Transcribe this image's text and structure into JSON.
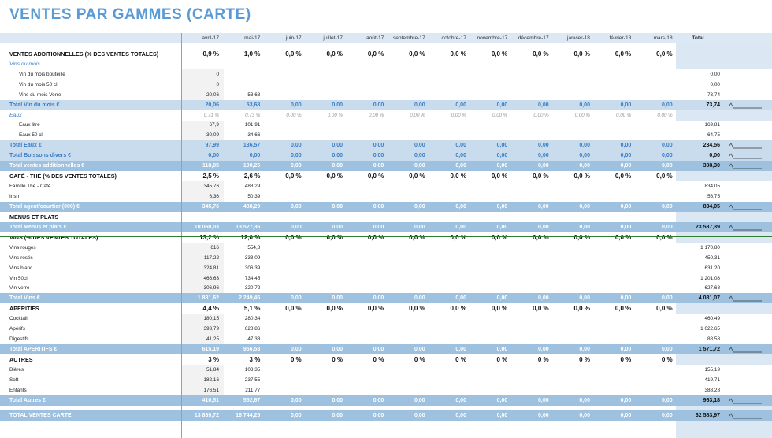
{
  "title": "VENTES PAR GAMMES (CARTE)",
  "columns": [
    "avril-17",
    "mai-17",
    "juin-17",
    "juillet-17",
    "août-17",
    "septembre-17",
    "octobre-17",
    "novembre-17",
    "décembre-17",
    "janvier-18",
    "février-18",
    "mars-18"
  ],
  "total_label": "Total",
  "rows": [
    {
      "type": "sec",
      "label": "VENTES ADDITIONNELLES (% DES VENTES TOTALES)",
      "values": [
        "0,9 %",
        "1,0 %",
        "0,0 %",
        "0,0 %",
        "0,0 %",
        "0,0 %",
        "0,0 %",
        "0,0 %",
        "0,0 %",
        "0,0 %",
        "0,0 %",
        "0,0 %"
      ],
      "total": ""
    },
    {
      "type": "sub",
      "label": "Vins du mois",
      "values": [
        "",
        "",
        "",
        "",
        "",
        "",
        "",
        "",
        "",
        "",
        "",
        ""
      ],
      "total": ""
    },
    {
      "type": "item",
      "label": "Vin du mois bouteille",
      "values": [
        "0",
        "",
        "",
        "",
        "",
        "",
        "",
        "",
        "",
        "",
        "",
        ""
      ],
      "total": "0,00"
    },
    {
      "type": "item",
      "label": "Vin du mois 50 cl",
      "values": [
        "0",
        "",
        "",
        "",
        "",
        "",
        "",
        "",
        "",
        "",
        "",
        ""
      ],
      "total": "0,00"
    },
    {
      "type": "item",
      "label": "Vins du mois Verre",
      "values": [
        "20,06",
        "53,68",
        "",
        "",
        "",
        "",
        "",
        "",
        "",
        "",
        "",
        ""
      ],
      "total": "73,74"
    },
    {
      "type": "t-light",
      "label": "Total Vin du mois €",
      "values": [
        "20,06",
        "53,68",
        "0,00",
        "0,00",
        "0,00",
        "0,00",
        "0,00",
        "0,00",
        "0,00",
        "0,00",
        "0,00",
        "0,00"
      ],
      "total": "73,74",
      "spark": true
    },
    {
      "type": "sub",
      "label": "Eaux",
      "values": [
        "0,71 %",
        "0,73 %",
        "0,00 %",
        "0,00 %",
        "0,00 %",
        "0,00 %",
        "0,00 %",
        "0,00 %",
        "0,00 %",
        "0,00 %",
        "0,00 %",
        "0,00 %"
      ],
      "total": ""
    },
    {
      "type": "item",
      "label": "Eaux litre",
      "values": [
        "67,9",
        "101,91",
        "",
        "",
        "",
        "",
        "",
        "",
        "",
        "",
        "",
        ""
      ],
      "total": "169,81"
    },
    {
      "type": "item",
      "label": "Eaux 50 cl",
      "values": [
        "30,09",
        "34,66",
        "",
        "",
        "",
        "",
        "",
        "",
        "",
        "",
        "",
        ""
      ],
      "total": "64,75"
    },
    {
      "type": "t-light",
      "label": "Total Eaux €",
      "values": [
        "97,99",
        "136,57",
        "0,00",
        "0,00",
        "0,00",
        "0,00",
        "0,00",
        "0,00",
        "0,00",
        "0,00",
        "0,00",
        "0,00"
      ],
      "total": "234,56",
      "spark": true
    },
    {
      "type": "t-light",
      "label": "Total Boissons divers €",
      "values": [
        "0,00",
        "0,00",
        "0,00",
        "0,00",
        "0,00",
        "0,00",
        "0,00",
        "0,00",
        "0,00",
        "0,00",
        "0,00",
        "0,00"
      ],
      "total": "0,00",
      "spark": true
    },
    {
      "type": "t-dark",
      "label": "Total ventes additionnelles €",
      "values": [
        "118,05",
        "190,25",
        "0,00",
        "0,00",
        "0,00",
        "0,00",
        "0,00",
        "0,00",
        "0,00",
        "0,00",
        "0,00",
        "0,00"
      ],
      "total": "308,30",
      "spark": true
    },
    {
      "type": "sec",
      "label": "CAFÉ - THÉ  (% DES VENTES TOTALES)",
      "values": [
        "2,5 %",
        "2,6 %",
        "0,0 %",
        "0,0 %",
        "0,0 %",
        "0,0 %",
        "0,0 %",
        "0,0 %",
        "0,0 %",
        "0,0 %",
        "0,0 %",
        "0,0 %"
      ],
      "total": ""
    },
    {
      "type": "item flat",
      "label": "Famille Thé - Café",
      "values": [
        "345,76",
        "488,29",
        "",
        "",
        "",
        "",
        "",
        "",
        "",
        "",
        "",
        ""
      ],
      "total": "834,05"
    },
    {
      "type": "item flat",
      "label": "Irish",
      "values": [
        "6,36",
        "50,39",
        "",
        "",
        "",
        "",
        "",
        "",
        "",
        "",
        "",
        ""
      ],
      "total": "56,75"
    },
    {
      "type": "t-dark",
      "label": "Total agent/courtier (000) €",
      "values": [
        "345,76",
        "488,29",
        "0,00",
        "0,00",
        "0,00",
        "0,00",
        "0,00",
        "0,00",
        "0,00",
        "0,00",
        "0,00",
        "0,00"
      ],
      "total": "834,05",
      "spark": true
    },
    {
      "type": "sec",
      "label": "MENUS ET PLATS",
      "values": [
        "",
        "",
        "",
        "",
        "",
        "",
        "",
        "",
        "",
        "",
        "",
        ""
      ],
      "total": ""
    },
    {
      "type": "t-dark",
      "label": "Total Menus et plats €",
      "values": [
        "10 060,03",
        "13 527,36",
        "0,00",
        "0,00",
        "0,00",
        "0,00",
        "0,00",
        "0,00",
        "0,00",
        "0,00",
        "0,00",
        "0,00"
      ],
      "total": "23 587,39",
      "spark": true
    },
    {
      "type": "sec",
      "label": "VINS   (% DES VENTES TOTALES)",
      "values": [
        "13,2 %",
        "12,0 %",
        "0,0 %",
        "0,0 %",
        "0,0 %",
        "0,0 %",
        "0,0 %",
        "0,0 %",
        "0,0 %",
        "0,0 %",
        "0,0 %",
        "0,0 %"
      ],
      "total": ""
    },
    {
      "type": "item flat",
      "label": "Vins rouges",
      "values": [
        "616",
        "554,8",
        "",
        "",
        "",
        "",
        "",
        "",
        "",
        "",
        "",
        ""
      ],
      "total": "1 170,80"
    },
    {
      "type": "item flat",
      "label": "Vins rosés",
      "values": [
        "117,22",
        "333,09",
        "",
        "",
        "",
        "",
        "",
        "",
        "",
        "",
        "",
        ""
      ],
      "total": "450,31"
    },
    {
      "type": "item flat",
      "label": "Vins blanc",
      "values": [
        "324,81",
        "306,39",
        "",
        "",
        "",
        "",
        "",
        "",
        "",
        "",
        "",
        ""
      ],
      "total": "631,20"
    },
    {
      "type": "item flat",
      "label": "Vin 50cl",
      "values": [
        "466,63",
        "734,45",
        "",
        "",
        "",
        "",
        "",
        "",
        "",
        "",
        "",
        ""
      ],
      "total": "1 201,08"
    },
    {
      "type": "item flat",
      "label": "Vin verre",
      "values": [
        "306,96",
        "320,72",
        "",
        "",
        "",
        "",
        "",
        "",
        "",
        "",
        "",
        ""
      ],
      "total": "627,68"
    },
    {
      "type": "t-dark",
      "label": "Total Vins €",
      "values": [
        "1 831,62",
        "2 249,45",
        "0,00",
        "0,00",
        "0,00",
        "0,00",
        "0,00",
        "0,00",
        "0,00",
        "0,00",
        "0,00",
        "0,00"
      ],
      "total": "4 081,07",
      "spark": true
    },
    {
      "type": "sec",
      "label": "APERITIFS",
      "values": [
        "4,4 %",
        "5,1 %",
        "0,0 %",
        "0,0 %",
        "0,0 %",
        "0,0 %",
        "0,0 %",
        "0,0 %",
        "0,0 %",
        "0,0 %",
        "0,0 %",
        "0,0 %"
      ],
      "total": ""
    },
    {
      "type": "item flat",
      "label": "Cocktail",
      "values": [
        "180,15",
        "280,34",
        "",
        "",
        "",
        "",
        "",
        "",
        "",
        "",
        "",
        ""
      ],
      "total": "460,49"
    },
    {
      "type": "item flat",
      "label": "Apérifs",
      "values": [
        "393,79",
        "628,86",
        "",
        "",
        "",
        "",
        "",
        "",
        "",
        "",
        "",
        ""
      ],
      "total": "1 022,65"
    },
    {
      "type": "item flat",
      "label": "Digestifs",
      "values": [
        "41,25",
        "47,33",
        "",
        "",
        "",
        "",
        "",
        "",
        "",
        "",
        "",
        ""
      ],
      "total": "88,58"
    },
    {
      "type": "t-dark",
      "label": "Total APERITIFS €",
      "values": [
        "615,19",
        "956,53",
        "0,00",
        "0,00",
        "0,00",
        "0,00",
        "0,00",
        "0,00",
        "0,00",
        "0,00",
        "0,00",
        "0,00"
      ],
      "total": "1 571,72",
      "spark": true
    },
    {
      "type": "sec",
      "label": "AUTRES",
      "values": [
        "3 %",
        "3 %",
        "0 %",
        "0 %",
        "0 %",
        "0 %",
        "0 %",
        "0 %",
        "0 %",
        "0 %",
        "0 %",
        "0 %"
      ],
      "total": ""
    },
    {
      "type": "item flat",
      "label": "Bières",
      "values": [
        "51,84",
        "103,35",
        "",
        "",
        "",
        "",
        "",
        "",
        "",
        "",
        "",
        ""
      ],
      "total": "155,19"
    },
    {
      "type": "item flat",
      "label": "Soft",
      "values": [
        "182,16",
        "237,55",
        "",
        "",
        "",
        "",
        "",
        "",
        "",
        "",
        "",
        ""
      ],
      "total": "419,71"
    },
    {
      "type": "item flat",
      "label": "Enfants",
      "values": [
        "176,51",
        "211,77",
        "",
        "",
        "",
        "",
        "",
        "",
        "",
        "",
        "",
        ""
      ],
      "total": "388,28"
    },
    {
      "type": "t-dark",
      "label": "Total Autres  €",
      "values": [
        "410,51",
        "552,67",
        "0,00",
        "0,00",
        "0,00",
        "0,00",
        "0,00",
        "0,00",
        "0,00",
        "0,00",
        "0,00",
        "0,00"
      ],
      "total": "963,18",
      "spark": true
    },
    {
      "type": "gap",
      "label": "",
      "values": [],
      "total": ""
    },
    {
      "type": "t-dark",
      "label": "TOTAL VENTES CARTE",
      "values": [
        "13 839,72",
        "18 744,25",
        "0,00",
        "0,00",
        "0,00",
        "0,00",
        "0,00",
        "0,00",
        "0,00",
        "0,00",
        "0,00",
        "0,00"
      ],
      "total": "32 583,97",
      "spark": true
    }
  ]
}
